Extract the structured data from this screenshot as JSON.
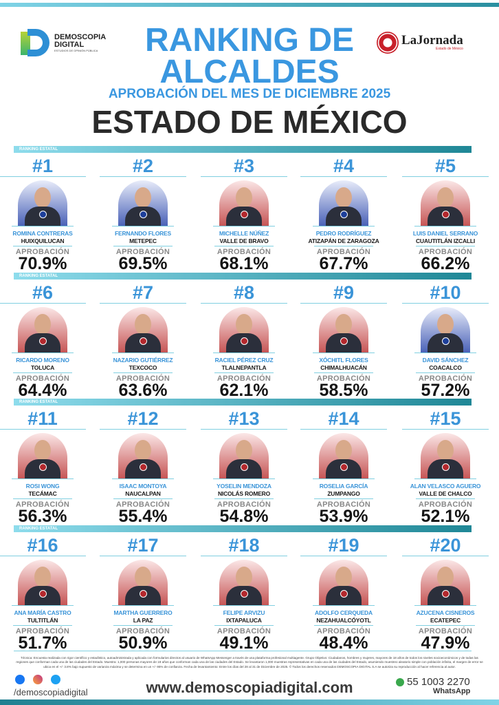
{
  "header": {
    "logo_left_line1": "DEMOSCOPIA",
    "logo_left_line2": "DIGITAL",
    "logo_left_tagline": "ESTUDIOS DE OPINIÓN PÚBLICA",
    "logo_right": "LaJornada",
    "logo_right_sub": "Estado de México",
    "title_line1": "RANKING DE",
    "title_line2": "ALCALDES",
    "subtitle": "APROBACIÓN DEL MES DE DICIEMBRE 2025",
    "region": "ESTADO DE MÉXICO"
  },
  "band_label": "RANKING ESTATAL",
  "approval_label": "APROBACIÓN",
  "colors": {
    "accent_blue": "#3a94d8",
    "pan_bg": "#4a62b8",
    "morena_bg": "#c65555"
  },
  "rows": [
    [
      {
        "rank": "#1",
        "name": "ROMINA CONTRERAS",
        "city": "HUIXQUILUCAN",
        "pct": "70.9%",
        "bg": "pan"
      },
      {
        "rank": "#2",
        "name": "FERNANDO FLORES",
        "city": "METEPEC",
        "pct": "69.5%",
        "bg": "pan"
      },
      {
        "rank": "#3",
        "name": "MICHELLE NÚÑEZ",
        "city": "VALLE DE BRAVO",
        "pct": "68.1%",
        "bg": "mor"
      },
      {
        "rank": "#4",
        "name": "PEDRO RODRÍGUEZ",
        "city": "ATIZAPÁN DE ZARAGOZA",
        "pct": "67.7%",
        "bg": "pan"
      },
      {
        "rank": "#5",
        "name": "LUIS DANIEL SERRANO",
        "city": "CUAUTITLÁN IZCALLI",
        "pct": "66.2%",
        "bg": "mor"
      }
    ],
    [
      {
        "rank": "#6",
        "name": "RICARDO MORENO",
        "city": "TOLUCA",
        "pct": "64.4%",
        "bg": "mor"
      },
      {
        "rank": "#7",
        "name": "NAZARIO GUTIÉRREZ",
        "city": "TEXCOCO",
        "pct": "63.6%",
        "bg": "mor"
      },
      {
        "rank": "#8",
        "name": "RACIEL PÉREZ CRUZ",
        "city": "TLALNEPANTLA",
        "pct": "62.1%",
        "bg": "mor"
      },
      {
        "rank": "#9",
        "name": "XÓCHITL FLORES",
        "city": "CHIMALHUACÁN",
        "pct": "58.5%",
        "bg": "mor"
      },
      {
        "rank": "#10",
        "name": "DAVID SÁNCHEZ",
        "city": "COACALCO",
        "pct": "57.2%",
        "bg": "pan"
      }
    ],
    [
      {
        "rank": "#11",
        "name": "ROSI WONG",
        "city": "TECÁMAC",
        "pct": "56.3%",
        "bg": "mor"
      },
      {
        "rank": "#12",
        "name": "ISAAC MONTOYA",
        "city": "NAUCALPAN",
        "pct": "55.4%",
        "bg": "mor"
      },
      {
        "rank": "#13",
        "name": "YOSELIN MENDOZA",
        "city": "NICOLÁS ROMERO",
        "pct": "54.8%",
        "bg": "mor"
      },
      {
        "rank": "#14",
        "name": "ROSELIA GARCÍA",
        "city": "ZUMPANGO",
        "pct": "53.9%",
        "bg": "mor"
      },
      {
        "rank": "#15",
        "name": "ALAN VELASCO AGUERO",
        "city": "VALLE DE CHALCO",
        "pct": "52.1%",
        "bg": "mor"
      }
    ],
    [
      {
        "rank": "#16",
        "name": "ANA MARÍA CASTRO",
        "city": "TULTITLÁN",
        "pct": "51.7%",
        "bg": "mor"
      },
      {
        "rank": "#17",
        "name": "MARTHA GUERRERO",
        "city": "LA PAZ",
        "pct": "50.9%",
        "bg": "mor"
      },
      {
        "rank": "#18",
        "name": "FELIPE ARVIZU",
        "city": "IXTAPALUCA",
        "pct": "49.1%",
        "bg": "mor"
      },
      {
        "rank": "#19",
        "name": "ADOLFO CERQUEDA",
        "city": "NEZAHUALCÓYOTL",
        "pct": "48.4%",
        "bg": "mor"
      },
      {
        "rank": "#20",
        "name": "AZUCENA CISNEROS",
        "city": "ECATEPEC",
        "pct": "47.9%",
        "bg": "mor"
      }
    ]
  ],
  "footer": {
    "methodology": "Técnica: Encuesta realizada con rigor científico y estadístico, autoadministrada y aplicada con formularios directos al usuario de WhatsApp Messenger a través de una plataforma profesional multiagente. Grupo Objetivo: Ciudadanos, hombres y mujeres, mayores de 18 años de todos los niveles socioeconómicos y de todas las regiones que conforman cada una de las ciudades del Estado. Muestra: 1,000 personas mayores de 18 años que conforman cada una de las ciudades del Estado. Se levantaron 1,000 muestras representativas en cada una de las ciudades del Estado, asumiendo muestreo aleatorio simple con población infinita, el margen de error se ubica en el +/- 3.8% bajo supuesto de varianza máxima y se determina en un +/- 95% de confianza. Fecha de levantamiento: Entre los días del 28 al 31 de Diciembre de 2025. © Todos los derechos reservados DEMOSCOPIA DIGITAL S.A se autoriza su reproducción al hacer referencia al autor.",
    "social_handle": "/demoscopiadigital",
    "website": "www.demoscopiadigital.com",
    "phone": "55 1003 2270",
    "phone_label": "WhatsApp",
    "social_icons": [
      "facebook-icon",
      "instagram-icon",
      "twitter-icon"
    ]
  }
}
